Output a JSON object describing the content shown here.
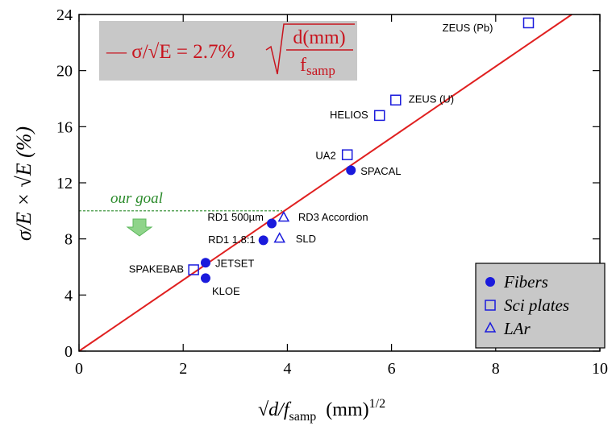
{
  "chart_data": {
    "type": "scatter",
    "formula": {
      "lhs": "— σ/√E = 2.7%",
      "numerator": "d(mm)",
      "denominator": "f",
      "denominator_sub": "samp"
    },
    "ylabel": "σ/E × √E (%)",
    "xlabel": {
      "main": "√d/f",
      "sub": "samp",
      "unit": "(mm)",
      "sup": "1/2"
    },
    "xlim": [
      0,
      10
    ],
    "xticks": [
      0,
      2,
      4,
      6,
      8,
      10
    ],
    "ylim": [
      0,
      24
    ],
    "yticks": [
      0,
      4,
      8,
      12,
      16,
      20,
      24
    ],
    "fit_line": {
      "color": "#e02020",
      "x": [
        0,
        9.46
      ],
      "values": [
        0,
        24
      ]
    },
    "goal": {
      "label": "our goal",
      "value": 10,
      "x_end": 3.9,
      "color": "#2a8a2a"
    },
    "legend_position": "lower right",
    "series": [
      {
        "name": "Fibers",
        "marker": "circle",
        "color": "#1a1adc",
        "x": [
          5.22,
          3.7,
          3.54,
          2.43,
          2.43
        ],
        "values": [
          12.9,
          9.1,
          7.9,
          6.3,
          5.2
        ],
        "labels": [
          "SPACAL",
          "RD1 500µm",
          "RD1 1.8:1",
          "JETSET",
          "KLOE"
        ]
      },
      {
        "name": "Sci plates",
        "marker": "square",
        "color": "#1a1adc",
        "x": [
          8.63,
          6.08,
          5.77,
          5.15,
          2.2
        ],
        "values": [
          23.4,
          17.9,
          16.8,
          14.0,
          5.8
        ],
        "labels": [
          "ZEUS (Pb)",
          "ZEUS (U)",
          "HELIOS",
          "UA2",
          "SPAKEBAB"
        ]
      },
      {
        "name": "LAr",
        "marker": "triangle",
        "color": "#1a1adc",
        "x": [
          3.93,
          3.85
        ],
        "values": [
          9.5,
          8.0
        ],
        "labels": [
          "RD3 Accordion",
          "SLD"
        ]
      }
    ]
  }
}
